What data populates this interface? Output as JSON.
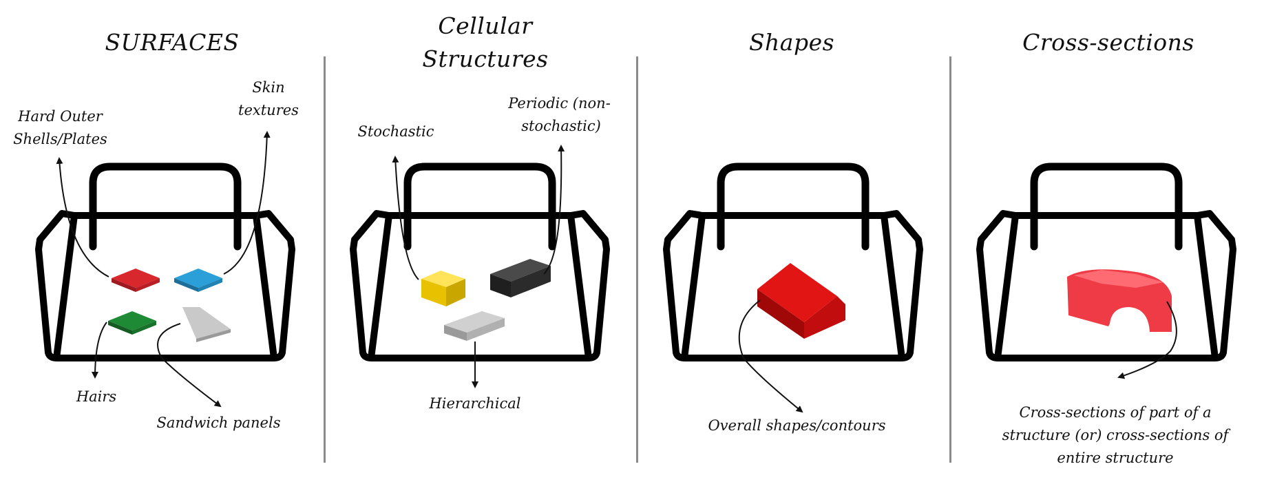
{
  "panels": [
    {
      "title": "SURFACES",
      "labels": [
        "Hard Outer",
        "Shells/Plates",
        "Skin",
        "textures",
        "Hairs",
        "Sandwich panels"
      ]
    },
    {
      "title_lines": [
        "Cellular",
        "Structures"
      ],
      "labels": [
        "Stochastic",
        "Periodic (non-",
        "stochastic)",
        "Hierarchical"
      ]
    },
    {
      "title": "Shapes",
      "labels": [
        "Overall shapes/contours"
      ]
    },
    {
      "title": "Cross-sections",
      "labels": [
        "Cross-sections of part of a",
        "structure (or) cross-sections of",
        "entire structure"
      ]
    }
  ],
  "colors": {
    "red_plate": "#d9272e",
    "blue_plate": "#2a9fd8",
    "green_plate": "#1f8a35",
    "gray_plate": "#bdbdbd",
    "yellow_brick": "#f5d312",
    "black_brick": "#2b2b2b",
    "gray_brick": "#b8b8b8",
    "red_slope": "#c80e0e",
    "red_arch": "#ef3b45",
    "divider": "#8a8a8a"
  }
}
